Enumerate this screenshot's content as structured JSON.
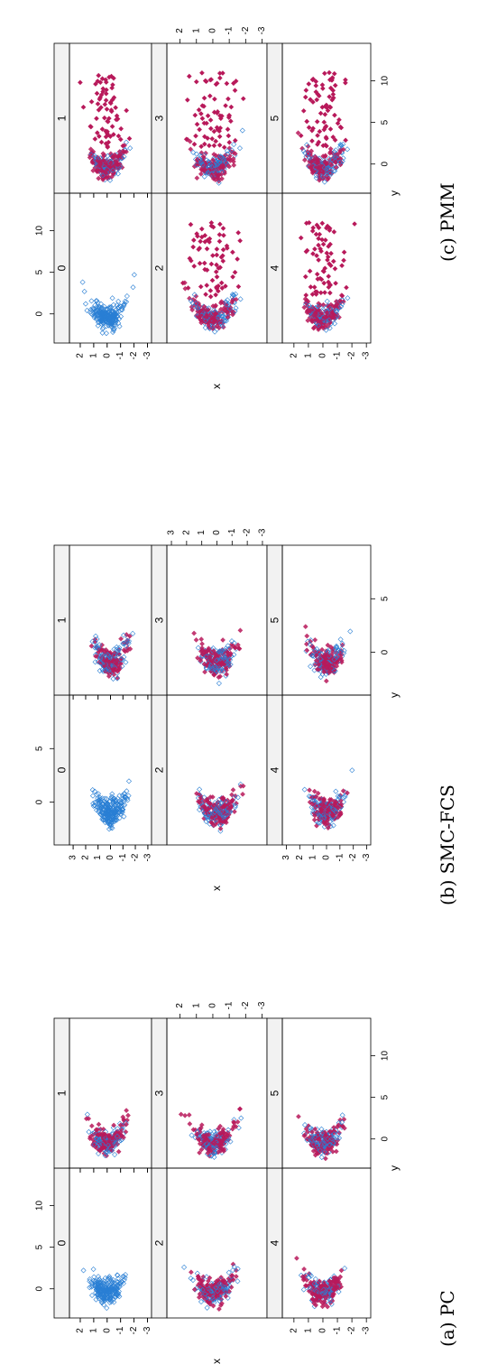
{
  "colors": {
    "observed": "#2a7fd4",
    "imputed": "#b8195a",
    "strip": "#f2f2f2",
    "frame": "#000000"
  },
  "panel_labels": [
    "0",
    "1",
    "2",
    "3",
    "4",
    "5"
  ],
  "axis_labels": {
    "x": "x",
    "y": "y"
  },
  "captions": [
    "(a) PC",
    "(b) SMC-FCS",
    "(c) PMM"
  ],
  "chart_data": [
    {
      "type": "scatter",
      "method": "PC",
      "caption": "(a) PC",
      "x_ticks": [
        2,
        1,
        0,
        -1,
        -2,
        -3
      ],
      "y_ticks": [
        0,
        5,
        10
      ],
      "x_range": [
        -3.3,
        2.8
      ],
      "y_range": [
        -3.5,
        14.5
      ],
      "panels": [
        "0",
        "1",
        "2",
        "3",
        "4",
        "5"
      ],
      "series": [
        {
          "name": "",
          "color": "#2a7fd4",
          "marker": "open-diamond"
        },
        {
          "name": "",
          "color": "#b8195a",
          "marker": "filled-diamond"
        }
      ]
    },
    {
      "type": "scatter",
      "method": "SMC-FCS",
      "caption": "(b) SMC-FCS",
      "x_ticks": [
        3,
        2,
        1,
        0,
        -1,
        -2,
        -3
      ],
      "y_ticks": [
        0,
        5
      ],
      "x_range": [
        -3.3,
        3.3
      ],
      "y_range": [
        -4,
        10
      ],
      "panels": [
        "0",
        "1",
        "2",
        "3",
        "4",
        "5"
      ],
      "series": [
        {
          "name": "",
          "color": "#2a7fd4",
          "marker": "open-diamond"
        },
        {
          "name": "",
          "color": "#b8195a",
          "marker": "filled-diamond"
        }
      ]
    },
    {
      "type": "scatter",
      "method": "PMM",
      "caption": "(c) PMM",
      "x_ticks": [
        2,
        1,
        0,
        -1,
        -2,
        -3
      ],
      "y_ticks": [
        0,
        5,
        10
      ],
      "x_range": [
        -3.3,
        2.8
      ],
      "y_range": [
        -3.5,
        14.5
      ],
      "panels": [
        "0",
        "1",
        "2",
        "3",
        "4",
        "5"
      ],
      "series": [
        {
          "name": "",
          "color": "#2a7fd4",
          "marker": "open-diamond"
        },
        {
          "name": "",
          "color": "#b8195a",
          "marker": "filled-diamond"
        }
      ]
    }
  ]
}
